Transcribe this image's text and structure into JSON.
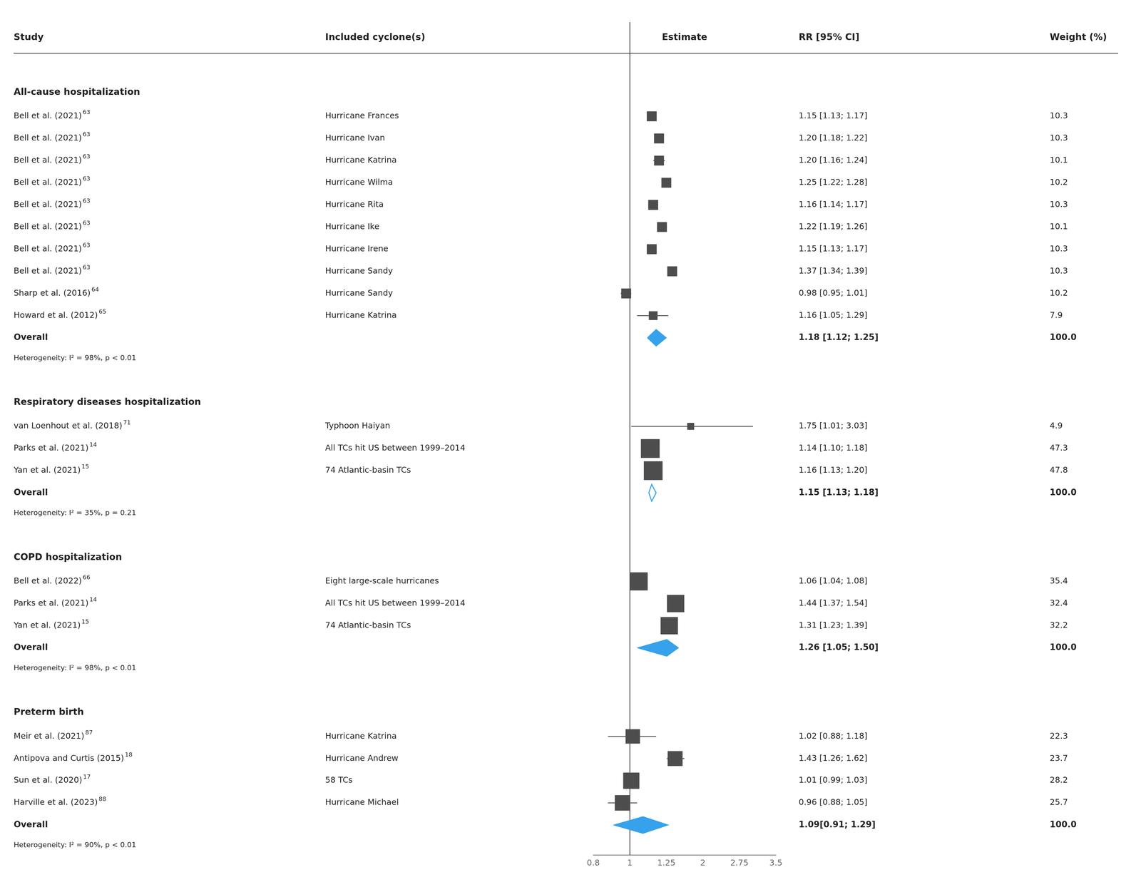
{
  "chart_data": {
    "type": "forest",
    "columns": [
      "Study",
      "Included cyclone(s)",
      "Estimate",
      "RR [95% CI]",
      "Weight (%)"
    ],
    "xlim": [
      0.8,
      3.5
    ],
    "xticks": [
      0.8,
      1,
      1.25,
      2,
      2.75,
      3.5
    ],
    "grid": false,
    "marker": "square",
    "null_line": 1,
    "sections": [
      {
        "title": "All-cause hospitalization",
        "studies": [
          {
            "study": "Bell et al. (2021)",
            "superscript": "63",
            "cyclone": "Hurricane Frances",
            "rr": 1.15,
            "ci_low": 1.13,
            "ci_high": 1.17,
            "rr_text": "1.15 [1.13; 1.17]",
            "weight": 10.3
          },
          {
            "study": "Bell et al. (2021)",
            "superscript": "63",
            "cyclone": "Hurricane Ivan",
            "rr": 1.2,
            "ci_low": 1.18,
            "ci_high": 1.22,
            "rr_text": "1.20 [1.18; 1.22]",
            "weight": 10.3
          },
          {
            "study": "Bell et al. (2021)",
            "superscript": "63",
            "cyclone": "Hurricane Katrina",
            "rr": 1.2,
            "ci_low": 1.16,
            "ci_high": 1.24,
            "rr_text": "1.20 [1.16; 1.24]",
            "weight": 10.1
          },
          {
            "study": "Bell et al. (2021)",
            "superscript": "63",
            "cyclone": "Hurricane Wilma",
            "rr": 1.25,
            "ci_low": 1.22,
            "ci_high": 1.28,
            "rr_text": "1.25 [1.22; 1.28]",
            "weight": 10.2
          },
          {
            "study": "Bell et al. (2021)",
            "superscript": "63",
            "cyclone": "Hurricane Rita",
            "rr": 1.16,
            "ci_low": 1.14,
            "ci_high": 1.17,
            "rr_text": "1.16 [1.14; 1.17]",
            "weight": 10.3
          },
          {
            "study": "Bell et al. (2021)",
            "superscript": "63",
            "cyclone": "Hurricane Ike",
            "rr": 1.22,
            "ci_low": 1.19,
            "ci_high": 1.26,
            "rr_text": "1.22 [1.19; 1.26]",
            "weight": 10.1
          },
          {
            "study": "Bell et al. (2021)",
            "superscript": "63",
            "cyclone": "Hurricane Irene",
            "rr": 1.15,
            "ci_low": 1.13,
            "ci_high": 1.17,
            "rr_text": "1.15 [1.13; 1.17]",
            "weight": 10.3
          },
          {
            "study": "Bell et al. (2021)",
            "superscript": "63",
            "cyclone": "Hurricane Sandy",
            "rr": 1.37,
            "ci_low": 1.34,
            "ci_high": 1.39,
            "rr_text": "1.37 [1.34; 1.39]",
            "weight": 10.3
          },
          {
            "study": "Sharp et al. (2016)",
            "superscript": "64",
            "cyclone": "Hurricane Sandy",
            "rr": 0.98,
            "ci_low": 0.95,
            "ci_high": 1.01,
            "rr_text": "0.98 [0.95; 1.01]",
            "weight": 10.2
          },
          {
            "study": "Howard et al. (2012)",
            "superscript": "65",
            "cyclone": "Hurricane Katrina",
            "rr": 1.16,
            "ci_low": 1.05,
            "ci_high": 1.29,
            "rr_text": "1.16 [1.05; 1.29]",
            "weight": 7.9
          }
        ],
        "overall": {
          "label": "Overall",
          "marker": "diamond",
          "rr": 1.18,
          "ci_low": 1.12,
          "ci_high": 1.25,
          "rr_text": "1.18 [1.12; 1.25]",
          "weight": 100.0,
          "weight_label": "100.0"
        },
        "heterogeneity": "Heterogeneity: I² = 98%, p < 0.01"
      },
      {
        "title": "Respiratory diseases hospitalization",
        "studies": [
          {
            "study": "van Loenhout et al. (2018)",
            "superscript": "71",
            "cyclone": "Typhoon Haiyan",
            "rr": 1.75,
            "ci_low": 1.01,
            "ci_high": 3.03,
            "rr_text": "1.75 [1.01; 3.03]",
            "weight": 4.9
          },
          {
            "study": "Parks et al. (2021)",
            "superscript": "14",
            "cyclone": "All TCs hit US between 1999–2014",
            "rr": 1.14,
            "ci_low": 1.1,
            "ci_high": 1.18,
            "rr_text": "1.14 [1.10; 1.18]",
            "weight": 47.3
          },
          {
            "study": "Yan et al. (2021)",
            "superscript": "15",
            "cyclone": "74 Atlantic-basin TCs",
            "rr": 1.16,
            "ci_low": 1.13,
            "ci_high": 1.2,
            "rr_text": "1.16 [1.13; 1.20]",
            "weight": 47.8
          }
        ],
        "overall": {
          "label": "Overall",
          "marker": "open_diamond",
          "rr": 1.15,
          "ci_low": 1.13,
          "ci_high": 1.18,
          "rr_text": "1.15 [1.13; 1.18]",
          "weight": 100.0,
          "weight_label": "100.0"
        },
        "heterogeneity": "Heterogeneity: I² = 35%, p = 0.21"
      },
      {
        "title": "COPD hospitalization",
        "studies": [
          {
            "study": "Bell et al. (2022)",
            "superscript": "66",
            "cyclone": "Eight large-scale hurricanes",
            "rr": 1.06,
            "ci_low": 1.04,
            "ci_high": 1.08,
            "rr_text": "1.06 [1.04; 1.08]",
            "weight": 35.4
          },
          {
            "study": "Parks et al. (2021)",
            "superscript": "14",
            "cyclone": "All TCs hit US between 1999–2014",
            "rr": 1.44,
            "ci_low": 1.37,
            "ci_high": 1.54,
            "rr_text": "1.44 [1.37; 1.54]",
            "weight": 32.4
          },
          {
            "study": "Yan et al. (2021)",
            "superscript": "15",
            "cyclone": "74 Atlantic-basin TCs",
            "rr": 1.31,
            "ci_low": 1.23,
            "ci_high": 1.39,
            "rr_text": "1.31 [1.23; 1.39]",
            "weight": 32.2
          }
        ],
        "overall": {
          "label": "Overall",
          "marker": "diamond",
          "rr": 1.26,
          "ci_low": 1.05,
          "ci_high": 1.5,
          "rr_text": "1.26 [1.05; 1.50]",
          "weight": 100.0,
          "weight_label": "100.0"
        },
        "heterogeneity": "Heterogeneity: I² = 98%, p < 0.01"
      },
      {
        "title": "Preterm birth",
        "studies": [
          {
            "study": "Meir et al. (2021)",
            "superscript": "87",
            "cyclone": "Hurricane Katrina",
            "rr": 1.02,
            "ci_low": 0.88,
            "ci_high": 1.18,
            "rr_text": "1.02 [0.88; 1.18]",
            "weight": 22.3
          },
          {
            "study": "Antipova and Curtis (2015)",
            "superscript": "18",
            "cyclone": "Hurricane Andrew",
            "rr": 1.43,
            "ci_low": 1.26,
            "ci_high": 1.62,
            "rr_text": "1.43 [1.26; 1.62]",
            "weight": 23.7
          },
          {
            "study": "Sun et al. (2020)",
            "superscript": "17",
            "cyclone": "58 TCs",
            "rr": 1.01,
            "ci_low": 0.99,
            "ci_high": 1.03,
            "rr_text": "1.01 [0.99; 1.03]",
            "weight": 28.2
          },
          {
            "study": "Harville et al. (2023)",
            "superscript": "88",
            "cyclone": "Hurricane Michael",
            "rr": 0.96,
            "ci_low": 0.88,
            "ci_high": 1.05,
            "rr_text": "0.96 [0.88; 1.05]",
            "weight": 25.7
          }
        ],
        "overall": {
          "label": "Overall",
          "marker": "diamond",
          "rr": 1.09,
          "ci_low": 0.91,
          "ci_high": 1.29,
          "rr_text": "1.09[0.91; 1.29]",
          "weight": 100.0,
          "weight_label": "100.0"
        },
        "heterogeneity": "Heterogeneity: I² = 90%, p < 0.01"
      }
    ]
  }
}
